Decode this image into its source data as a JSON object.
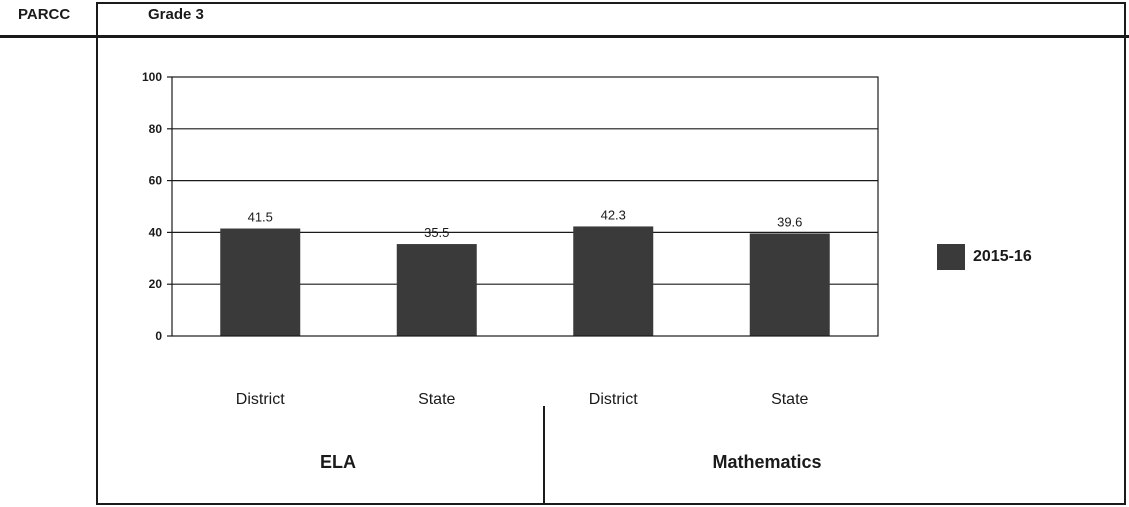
{
  "header": {
    "test_label": "PARCC",
    "grade_label": "Grade 3"
  },
  "chart_data": {
    "type": "bar",
    "title": "",
    "xlabel": "",
    "ylabel": "",
    "ylim": [
      0,
      100
    ],
    "yticks": [
      0,
      20,
      40,
      60,
      80,
      100
    ],
    "grid": true,
    "legend_position": "right",
    "categories": [
      "District",
      "State",
      "District",
      "State"
    ],
    "groups": [
      {
        "label": "ELA",
        "categories": [
          "District",
          "State"
        ]
      },
      {
        "label": "Mathematics",
        "categories": [
          "District",
          "State"
        ]
      }
    ],
    "series": [
      {
        "name": "2015-16",
        "color": "#3a3a3a",
        "values": [
          41.5,
          35.5,
          42.3,
          39.6
        ]
      }
    ]
  }
}
